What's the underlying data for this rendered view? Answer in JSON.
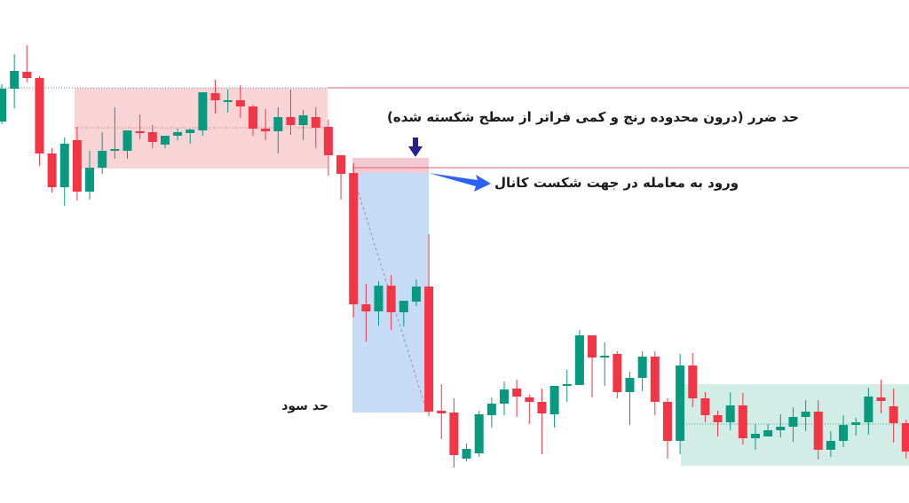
{
  "chart_data": {
    "type": "candlestick",
    "title": "",
    "xlabel": "",
    "ylabel": "",
    "axes_visible": false,
    "grid": false,
    "note_units": "relative price (no axis printed)",
    "colors": {
      "up": "#089981",
      "down": "#f23645",
      "range_zone": "#f9d4d7",
      "stop_zone": "#f3c9d2",
      "target_zone": "#c6dbf6",
      "target_range_zone": "#d2ece6",
      "entry_arrow": "#2962ff",
      "stop_arrow": "#2a1f8f"
    },
    "candles": [
      [
        463,
        505,
        460,
        500
      ],
      [
        500,
        539,
        478,
        520
      ],
      [
        519,
        549,
        507,
        512
      ],
      [
        512,
        514,
        413,
        427
      ],
      [
        427,
        433,
        383,
        389
      ],
      [
        389,
        445,
        368,
        438
      ],
      [
        442,
        457,
        374,
        384
      ],
      [
        384,
        430,
        375,
        411
      ],
      [
        411,
        451,
        404,
        430
      ],
      [
        430,
        479,
        421,
        432
      ],
      [
        430,
        453,
        421,
        453
      ],
      [
        452,
        471,
        443,
        450
      ],
      [
        451,
        459,
        433,
        440
      ],
      [
        437,
        447,
        433,
        447
      ],
      [
        447,
        455,
        442,
        451
      ],
      [
        450,
        455,
        438,
        454
      ],
      [
        453,
        496,
        447,
        496
      ],
      [
        495,
        510,
        472,
        487
      ],
      [
        487,
        499,
        473,
        487
      ],
      [
        487,
        504,
        467,
        480
      ],
      [
        480,
        482,
        447,
        455
      ],
      [
        455,
        477,
        442,
        452
      ],
      [
        452,
        479,
        427,
        468
      ],
      [
        468,
        499,
        448,
        459
      ],
      [
        459,
        476,
        442,
        470
      ],
      [
        468,
        479,
        433,
        456
      ],
      [
        457,
        465,
        402,
        425
      ],
      [
        425,
        425,
        375,
        404
      ],
      [
        405,
        416,
        242,
        257
      ],
      [
        257,
        280,
        215,
        249
      ],
      [
        249,
        283,
        233,
        278
      ],
      [
        278,
        290,
        228,
        248
      ],
      [
        248,
        261,
        232,
        261
      ],
      [
        260,
        285,
        255,
        277
      ],
      [
        277,
        336,
        131,
        136
      ],
      [
        137,
        167,
        105,
        134
      ],
      [
        135,
        151,
        73,
        87
      ],
      [
        83,
        100,
        80,
        94
      ],
      [
        89,
        137,
        85,
        133
      ],
      [
        132,
        152,
        118,
        145
      ],
      [
        145,
        170,
        132,
        161
      ],
      [
        162,
        172,
        130,
        153
      ],
      [
        152,
        155,
        122,
        147
      ],
      [
        147,
        162,
        88,
        134
      ],
      [
        133,
        165,
        118,
        165
      ],
      [
        166,
        183,
        147,
        167
      ],
      [
        166,
        228,
        166,
        222
      ],
      [
        222,
        222,
        152,
        197
      ],
      [
        199,
        214,
        165,
        199
      ],
      [
        201,
        204,
        151,
        158
      ],
      [
        158,
        181,
        121,
        174
      ],
      [
        174,
        204,
        159,
        198
      ],
      [
        198,
        204,
        132,
        147
      ],
      [
        147,
        151,
        83,
        103
      ],
      [
        103,
        201,
        88,
        188
      ],
      [
        188,
        202,
        141,
        151
      ],
      [
        151,
        158,
        124,
        132
      ],
      [
        132,
        137,
        108,
        124
      ],
      [
        124,
        158,
        115,
        143
      ],
      [
        143,
        157,
        99,
        106
      ],
      [
        106,
        122,
        93,
        111
      ],
      [
        108,
        122,
        108,
        115
      ],
      [
        115,
        133,
        107,
        119
      ],
      [
        119,
        141,
        102,
        130
      ],
      [
        130,
        149,
        114,
        136
      ],
      [
        136,
        149,
        82,
        93
      ],
      [
        93,
        114,
        85,
        103
      ],
      [
        103,
        132,
        96,
        121
      ],
      [
        121,
        129,
        109,
        124
      ],
      [
        124,
        163,
        110,
        153
      ],
      [
        152,
        172,
        134,
        148
      ],
      [
        142,
        162,
        101,
        123
      ],
      [
        123,
        127,
        83,
        91
      ]
    ],
    "candle_fields": [
      "open",
      "high",
      "low",
      "close"
    ],
    "levels": {
      "range_top": 501,
      "range_mid": 456,
      "range_bottom": 410,
      "stop_line": 411,
      "entry": 405,
      "target": 135,
      "target_range_top": 167,
      "target_range_mid": 122,
      "target_range_bottom": 75
    },
    "annotations": {
      "stop_loss": "حد ضرر (درون محدوده رنج و کمی فراتر از سطح شکسته شده)",
      "entry": "ورود به معامله در جهت شکست کانال",
      "take_profit": "حد سود"
    }
  }
}
